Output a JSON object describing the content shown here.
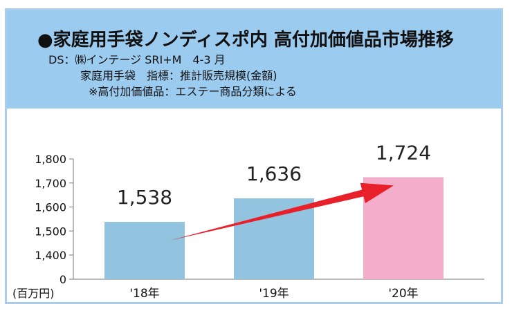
{
  "header": {
    "title": "●家庭用手袋ノンディスポ内 高付加価値品市場推移",
    "source": "DS：㈱インテージ SRI+M　4-3 月",
    "scope": "家庭用手袋　指標：推計販売規模(金額)",
    "definition": "※高付加価値品：エステー商品分類による"
  },
  "colors": {
    "header_bg": "#9ccbf0",
    "bar_blue": "#92c4df",
    "bar_pink": "#f4aecb",
    "arrow": "#e8202a"
  },
  "chart_data": {
    "type": "bar",
    "categories": [
      "'18年",
      "'19年",
      "'20年"
    ],
    "values": [
      1538,
      1636,
      1724
    ],
    "data_labels": [
      "1,538",
      "1,636",
      "1,724"
    ],
    "ylabel": "(百万円)",
    "ylim": [
      0,
      1800
    ],
    "axis_break": true,
    "y_ticks": [
      0,
      1400,
      1500,
      1600,
      1700,
      1800
    ],
    "y_tick_labels": [
      "0",
      "1,400",
      "1,500",
      "1,600",
      "1,700",
      "1,800"
    ],
    "highlight_category": "'20年",
    "arrow": {
      "from_category": "'18年",
      "to_category": "'20年"
    },
    "grid": false,
    "legend": "none"
  }
}
